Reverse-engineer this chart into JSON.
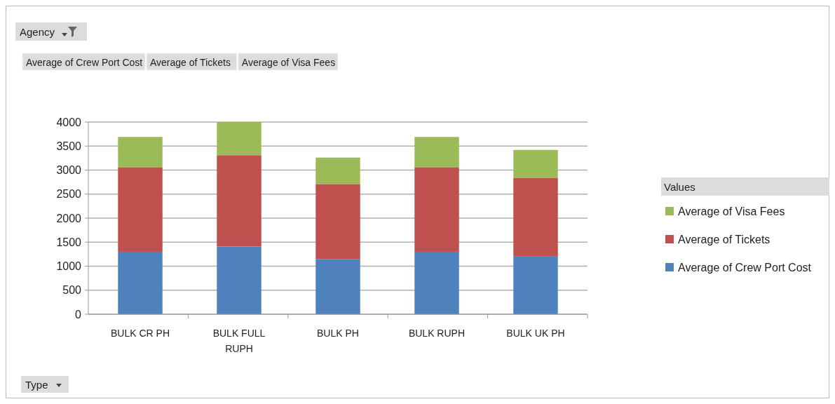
{
  "chart_data": {
    "type": "bar",
    "stacked": true,
    "categories": [
      "BULK CR PH",
      "BULK FULL RUPH",
      "BULK PH",
      "BULK RUPH",
      "BULK UK PH"
    ],
    "series": [
      {
        "name": "Average of Crew Port Cost",
        "color": "#4f81bd",
        "values": [
          1300,
          1410,
          1150,
          1300,
          1210
        ]
      },
      {
        "name": "Average of Tickets",
        "color": "#c0504d",
        "values": [
          1760,
          1900,
          1560,
          1760,
          1630
        ]
      },
      {
        "name": "Average of Visa Fees",
        "color": "#9bbb59",
        "values": [
          630,
          690,
          550,
          630,
          580
        ]
      }
    ],
    "ylim": [
      0,
      4000
    ],
    "yticks": [
      0,
      500,
      1000,
      1500,
      2000,
      2500,
      3000,
      3500,
      4000
    ],
    "grid": "y",
    "legend": "right",
    "legend_title": "Values",
    "annotations": [
      "Agency",
      "Type"
    ]
  }
}
